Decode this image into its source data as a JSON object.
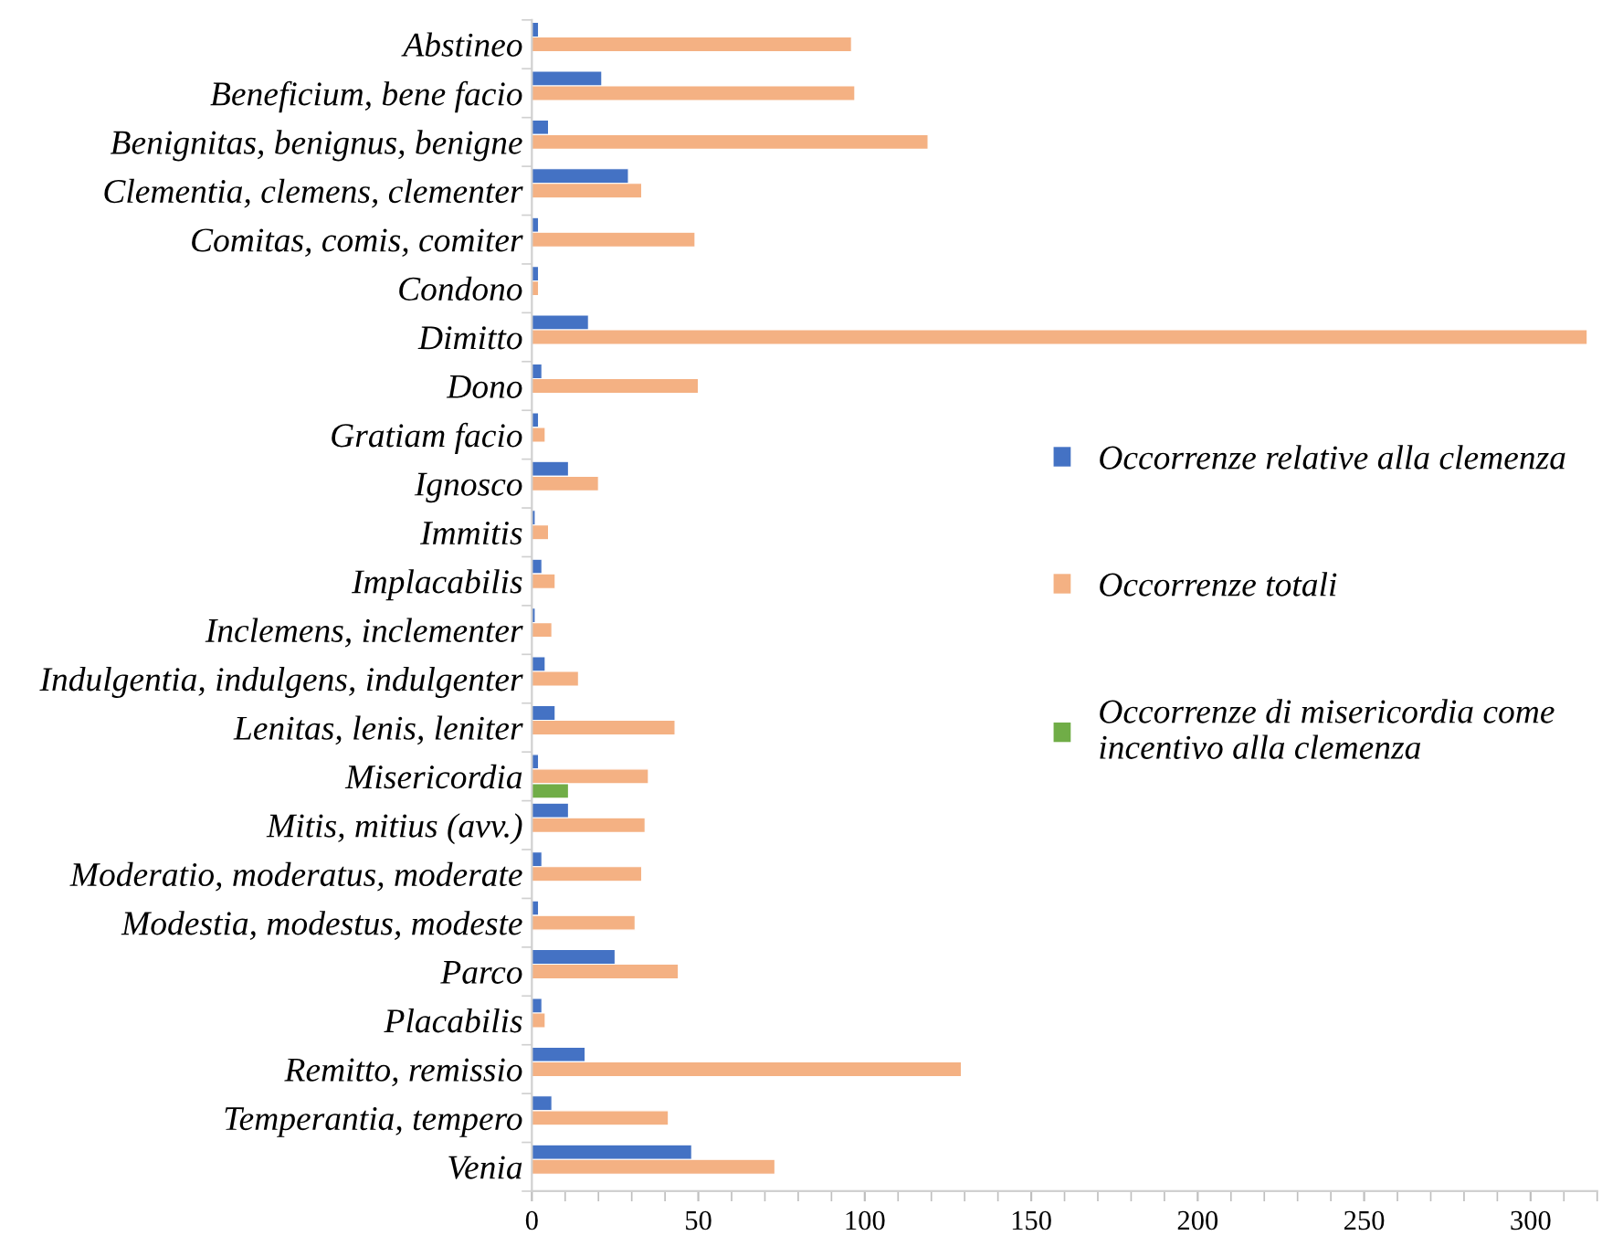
{
  "chart_data": {
    "type": "bar",
    "orientation": "horizontal",
    "categories": [
      "Abstineo",
      "Beneficium, bene facio",
      "Benignitas, benignus, benigne",
      "Clementia, clemens, clementer",
      "Comitas, comis, comiter",
      "Condono",
      "Dimitto",
      "Dono",
      "Gratiam facio",
      "Ignosco",
      "Immitis",
      "Implacabilis",
      "Inclemens, inclementer",
      "Indulgentia, indulgens, indulgenter",
      "Lenitas, lenis, leniter",
      "Misericordia",
      "Mitis, mitius (avv.)",
      "Moderatio, moderatus, moderate",
      "Modestia, modestus, modeste",
      "Parco",
      "Placabilis",
      "Remitto, remissio",
      "Temperantia, tempero",
      "Venia"
    ],
    "series": [
      {
        "name": "Occorrenze relative alla clemenza",
        "color": "#4472c4",
        "values": [
          2,
          21,
          5,
          29,
          2,
          2,
          17,
          3,
          2,
          11,
          1,
          3,
          1,
          4,
          7,
          2,
          11,
          3,
          2,
          25,
          3,
          16,
          6,
          48
        ]
      },
      {
        "name": "Occorrenze totali",
        "color": "#f4b183",
        "values": [
          96,
          97,
          119,
          33,
          49,
          2,
          317,
          50,
          4,
          20,
          5,
          7,
          6,
          14,
          43,
          35,
          34,
          33,
          31,
          44,
          4,
          129,
          41,
          73
        ]
      },
      {
        "name": "Occorrenze di misericordia come incentivo alla clemenza",
        "color": "#70ad47",
        "values": [
          null,
          null,
          null,
          null,
          null,
          null,
          null,
          null,
          null,
          null,
          null,
          null,
          null,
          null,
          null,
          11,
          null,
          null,
          null,
          null,
          null,
          null,
          null,
          null
        ]
      }
    ],
    "xlim": [
      0,
      320
    ],
    "xticks": [
      0,
      50,
      100,
      150,
      200,
      250,
      300
    ],
    "grid": false,
    "legend": "right"
  }
}
